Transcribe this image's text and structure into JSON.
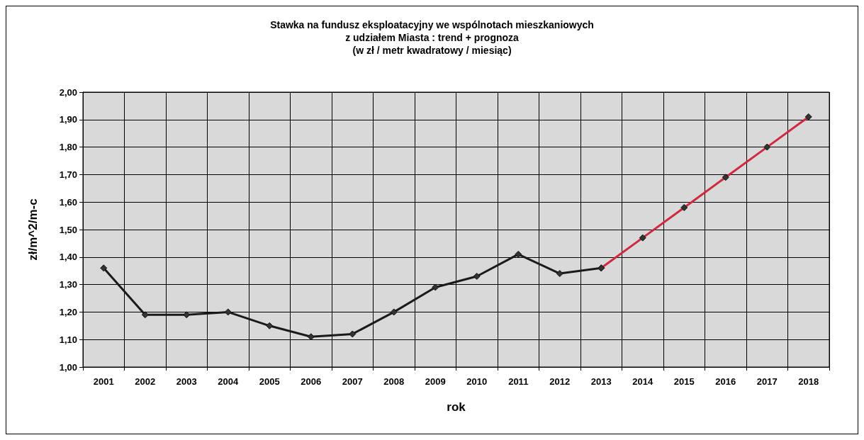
{
  "chart_data": {
    "type": "line",
    "title": "Stawka na fundusz eksploatacyjny we wspólnotach mieszkaniowych\nz udziałem Miasta : trend + prognoza\n(w zł / metr kwadratowy / miesiąc)",
    "xlabel": "rok",
    "ylabel": "zł/m^2/m-c",
    "categories": [
      "2001",
      "2002",
      "2003",
      "2004",
      "2005",
      "2006",
      "2007",
      "2008",
      "2009",
      "2010",
      "2011",
      "2012",
      "2013",
      "2014",
      "2015",
      "2016",
      "2017",
      "2018"
    ],
    "series": [
      {
        "color": "#1a1a1a",
        "values": [
          1.36,
          1.19,
          1.19,
          1.2,
          1.15,
          1.11,
          1.12,
          1.2,
          1.29,
          1.33,
          1.41,
          1.34,
          1.36,
          null,
          null,
          null,
          null,
          null
        ]
      },
      {
        "color": "#d0283c",
        "values": [
          null,
          null,
          null,
          null,
          null,
          null,
          null,
          null,
          null,
          null,
          null,
          null,
          1.36,
          1.47,
          1.58,
          1.69,
          1.8,
          1.91
        ]
      }
    ],
    "ylim": [
      1,
      2
    ],
    "yticks": [
      {
        "value": 1,
        "label": "1,00"
      },
      {
        "value": 1.1,
        "label": "1,10"
      },
      {
        "value": 1.2,
        "label": "1,20"
      },
      {
        "value": 1.3,
        "label": "1,30"
      },
      {
        "value": 1.4,
        "label": "1,40"
      },
      {
        "value": 1.5,
        "label": "1,50"
      },
      {
        "value": 1.6,
        "label": "1,60"
      },
      {
        "value": 1.7,
        "label": "1,70"
      },
      {
        "value": 1.8,
        "label": "1,80"
      },
      {
        "value": 1.9,
        "label": "1,90"
      },
      {
        "value": 2,
        "label": "2,00"
      }
    ],
    "grid": true,
    "marker": "diamond",
    "line_style": "solid"
  }
}
